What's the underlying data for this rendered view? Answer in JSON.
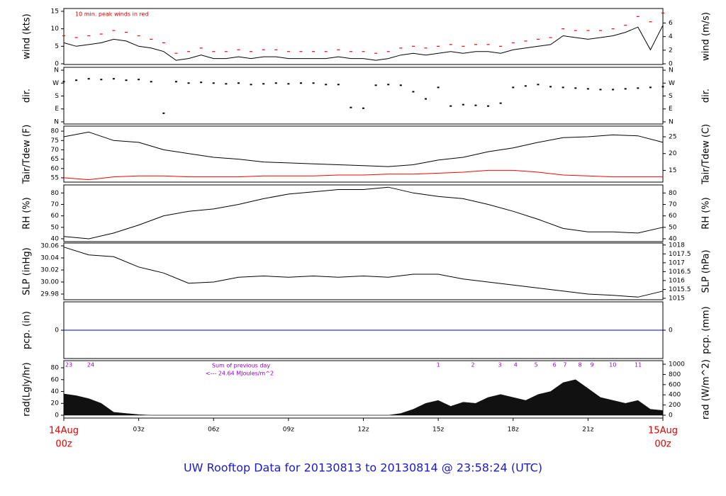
{
  "title": "UW Rooftop Data for 20130813  to  20130814 @ 23:58:24  (UTC)",
  "chart_data": [
    {
      "type": "line",
      "ylabel": "wind (kts)",
      "y2label": "wind (m/s)",
      "annotation": "10 min. peak winds in red",
      "xlim": [
        0,
        24
      ],
      "x": [
        0,
        0.5,
        1,
        1.5,
        2,
        2.5,
        3,
        3.5,
        4,
        4.5,
        5,
        5.5,
        6,
        6.5,
        7,
        7.5,
        8,
        8.5,
        9,
        9.5,
        10,
        10.5,
        11,
        11.5,
        12,
        12.5,
        13,
        13.5,
        14,
        14.5,
        15,
        15.5,
        16,
        16.5,
        17,
        17.5,
        18,
        18.5,
        19,
        19.5,
        20,
        20.5,
        21,
        21.5,
        22,
        22.5,
        23,
        23.5,
        24
      ],
      "ylim": [
        -0.2,
        15.8
      ],
      "yticks": [
        0,
        5,
        10,
        15
      ],
      "y2lim": [
        -0.1,
        8.13
      ],
      "y2ticks": [
        0,
        2,
        4,
        6
      ],
      "series": [
        {
          "color": "#000000",
          "mode": "line",
          "values": [
            6,
            5,
            5.5,
            6,
            7,
            6.5,
            5,
            4.5,
            3.5,
            1,
            1.5,
            2.5,
            1.5,
            1.5,
            2,
            1.5,
            2,
            2,
            1.5,
            1.5,
            1.5,
            1.5,
            2,
            1.5,
            1.5,
            1,
            1.5,
            2.5,
            3,
            2.5,
            3,
            3.5,
            3,
            3.5,
            3.5,
            3,
            4,
            4.5,
            5,
            5.5,
            8,
            7.5,
            7,
            7.5,
            8,
            9,
            10.5,
            4,
            11
          ]
        },
        {
          "color": "#ff0000",
          "mode": "markers",
          "values": [
            8,
            7.5,
            8,
            8.5,
            9.5,
            9,
            8,
            7,
            6,
            3,
            3.5,
            4.5,
            3.5,
            3.5,
            4,
            3.5,
            4,
            4,
            3.5,
            3.5,
            3.5,
            3.5,
            4,
            3.5,
            3.5,
            3,
            3.5,
            4.5,
            5,
            4.5,
            5,
            5.5,
            5,
            5.5,
            5.5,
            5,
            6,
            6.5,
            7,
            7.5,
            10,
            9.5,
            9.5,
            9.5,
            10,
            11,
            13.5,
            12,
            14.5
          ]
        }
      ]
    },
    {
      "type": "scatter",
      "ylabel": "dir.",
      "y2label": "dir.",
      "xlim": [
        0,
        24
      ],
      "x": [
        0,
        0.5,
        1,
        1.5,
        2,
        2.5,
        3,
        3.5,
        4,
        4.5,
        5,
        5.5,
        6,
        6.5,
        7,
        7.5,
        8,
        8.5,
        9,
        9.5,
        10,
        10.5,
        11,
        11.5,
        12,
        12.5,
        13,
        13.5,
        14,
        14.5,
        15,
        15.5,
        16,
        16.5,
        17,
        17.5,
        18,
        18.5,
        19,
        19.5,
        20,
        20.5,
        21,
        21.5,
        22,
        22.5,
        23,
        23.5,
        24
      ],
      "ylim": [
        -15,
        380
      ],
      "yticks": [
        {
          "value": 0,
          "label": "N"
        },
        {
          "value": 90,
          "label": "E"
        },
        {
          "value": 180,
          "label": "S"
        },
        {
          "value": 270,
          "label": "W"
        },
        {
          "value": 360,
          "label": "N"
        }
      ],
      "y2lim": [
        -15,
        380
      ],
      "y2ticks": [
        {
          "value": 0,
          "label": "N"
        },
        {
          "value": 90,
          "label": "E"
        },
        {
          "value": 180,
          "label": "S"
        },
        {
          "value": 270,
          "label": "W"
        },
        {
          "value": 360,
          "label": "N"
        }
      ],
      "series": [
        {
          "color": "#000000",
          "values": [
            280,
            290,
            300,
            295,
            300,
            290,
            295,
            280,
            60,
            280,
            270,
            275,
            270,
            265,
            270,
            260,
            265,
            270,
            265,
            270,
            270,
            260,
            260,
            100,
            95,
            255,
            260,
            255,
            210,
            160,
            240,
            110,
            120,
            115,
            110,
            130,
            240,
            250,
            260,
            245,
            240,
            235,
            230,
            225,
            225,
            230,
            235,
            240,
            245
          ]
        }
      ]
    },
    {
      "type": "line",
      "ylabel": "Tair/Tdew (F)",
      "y2label": "Tair/Tdew (C)",
      "xlim": [
        0,
        24
      ],
      "x": [
        0,
        1,
        2,
        3,
        4,
        5,
        6,
        7,
        8,
        9,
        10,
        11,
        12,
        13,
        14,
        15,
        16,
        17,
        18,
        19,
        20,
        21,
        22,
        23,
        24
      ],
      "ylim": [
        52.7,
        82.7
      ],
      "yticks": [
        55,
        60,
        65,
        70,
        75,
        80
      ],
      "y2lim": [
        11.5,
        28.17
      ],
      "y2ticks": [
        15,
        20,
        25
      ],
      "series": [
        {
          "color": "#000000",
          "mode": "line",
          "values": [
            77,
            79.5,
            75,
            74,
            70,
            68,
            66,
            65,
            63.5,
            63,
            62.5,
            62,
            61.5,
            61,
            62,
            64.5,
            66,
            69,
            71,
            74,
            76.5,
            77,
            78,
            77.5,
            74
          ]
        },
        {
          "color": "#ff0000",
          "mode": "line",
          "values": [
            55,
            54,
            55.5,
            56,
            56,
            55.5,
            55.5,
            55.5,
            56,
            56,
            56,
            56.5,
            56.5,
            57,
            57,
            57.5,
            58,
            59,
            59,
            58,
            56.5,
            56,
            55.5,
            55.5,
            55.5
          ]
        }
      ]
    },
    {
      "type": "line",
      "ylabel": "RH (%)",
      "y2label": "RH (%)",
      "xlim": [
        0,
        24
      ],
      "x": [
        0,
        1,
        2,
        3,
        4,
        5,
        6,
        7,
        8,
        9,
        10,
        11,
        12,
        13,
        14,
        15,
        16,
        17,
        18,
        19,
        20,
        21,
        22,
        23,
        24
      ],
      "ylim": [
        37.5,
        87
      ],
      "yticks": [
        40,
        50,
        60,
        70,
        80
      ],
      "y2lim": [
        37.5,
        87
      ],
      "y2ticks": [
        40,
        50,
        60,
        70,
        80
      ],
      "series": [
        {
          "color": "#000000",
          "mode": "line",
          "values": [
            42,
            40,
            45,
            52,
            60,
            64,
            66,
            70,
            75,
            79,
            81,
            83,
            83,
            85,
            80,
            77,
            75,
            70,
            64,
            57,
            49,
            46,
            46,
            45,
            50
          ]
        }
      ]
    },
    {
      "type": "line",
      "ylabel": "SLP (inHg)",
      "y2label": "SLP (hPa)",
      "xlim": [
        0,
        24
      ],
      "x": [
        0,
        1,
        2,
        3,
        4,
        5,
        6,
        7,
        8,
        9,
        10,
        11,
        12,
        13,
        14,
        15,
        16,
        17,
        18,
        19,
        20,
        21,
        22,
        23,
        24
      ],
      "ylim": [
        29.9706,
        30.0647
      ],
      "yticks": [
        29.98,
        {
          "value": 30,
          "label": "30.00"
        },
        30.02,
        30.04,
        30.06
      ],
      "y2lim": [
        1014.92,
        1018.11
      ],
      "y2ticks": [
        1015,
        1015.5,
        1016,
        1016.5,
        1017,
        1017.5,
        1018
      ],
      "series": [
        {
          "color": "#000000",
          "mode": "line",
          "values": [
            30.058,
            30.045,
            30.042,
            30.025,
            30.015,
            29.998,
            30.0,
            30.008,
            30.01,
            30.008,
            30.01,
            30.008,
            30.01,
            30.008,
            30.013,
            30.013,
            30.005,
            30.0,
            29.995,
            29.99,
            29.985,
            29.98,
            29.978,
            29.975,
            29.985
          ]
        }
      ]
    },
    {
      "type": "line",
      "ylabel": "pcp. (in)",
      "y2label": "pcp. (mm)",
      "xlim": [
        0,
        24
      ],
      "x": [
        0,
        24
      ],
      "ylim": [
        -1,
        1
      ],
      "yticks": [
        0
      ],
      "y2lim": [
        -1,
        1
      ],
      "y2ticks": [
        0
      ],
      "series": [
        {
          "color": "#0000cc",
          "mode": "line",
          "values": [
            0,
            0
          ]
        }
      ]
    },
    {
      "type": "area",
      "ylabel": "rad(Lgly/hr)",
      "y2label": "rad (W/m^2)",
      "annotations": [
        "Sum of previous day",
        "<--- 24.64 MJoules/m^2"
      ],
      "hour_markers": {
        "x": [
          0.2,
          1.08,
          15.0,
          16.39,
          17.47,
          18.1,
          18.92,
          19.66,
          20.08,
          20.68,
          21.16,
          21.99,
          23.01
        ],
        "labels": [
          "23",
          "24",
          "1",
          "2",
          "3",
          "4",
          "5",
          "6",
          "7",
          "8",
          "9",
          "10",
          "11"
        ]
      },
      "xlim": [
        0,
        24
      ],
      "x": [
        0,
        0.5,
        1,
        1.5,
        2,
        2.5,
        3,
        3.5,
        4,
        4.5,
        5,
        5.5,
        6,
        6.5,
        7,
        7.5,
        8,
        8.5,
        9,
        9.5,
        10,
        10.5,
        11,
        11.5,
        12,
        12.5,
        13,
        13.5,
        14,
        14.5,
        15,
        15.5,
        16,
        16.5,
        17,
        17.5,
        18,
        18.5,
        19,
        19.5,
        20,
        20.5,
        21,
        21.5,
        22,
        22.5,
        23,
        23.5,
        24
      ],
      "xticks": [
        {
          "value": 0,
          "label": "00z"
        },
        {
          "value": 3,
          "label": "03z"
        },
        {
          "value": 6,
          "label": "06z"
        },
        {
          "value": 9,
          "label": "09z"
        },
        {
          "value": 12,
          "label": "12z"
        },
        {
          "value": 15,
          "label": "15z"
        },
        {
          "value": 18,
          "label": "18z"
        },
        {
          "value": 21,
          "label": "21z"
        },
        {
          "value": 24,
          "label": "00z"
        }
      ],
      "date_labels": [
        {
          "value": 0,
          "label": "14Aug"
        },
        {
          "value": 24,
          "label": "15Aug"
        }
      ],
      "ylim": [
        -4.8,
        92
      ],
      "yticks": [
        0,
        20,
        40,
        60,
        80
      ],
      "y2lim": [
        -56,
        1070
      ],
      "y2ticks": [
        0,
        200,
        400,
        600,
        800,
        1000
      ],
      "series": [
        {
          "color": "#111111",
          "values": [
            36,
            33,
            28,
            20,
            5,
            3,
            1,
            0,
            0,
            0,
            0,
            0,
            0,
            0,
            0,
            0,
            0,
            0,
            0,
            0,
            0,
            0,
            0,
            0,
            0,
            0,
            0,
            3,
            10,
            20,
            25,
            15,
            22,
            20,
            30,
            35,
            30,
            25,
            35,
            40,
            55,
            60,
            45,
            30,
            25,
            20,
            25,
            10,
            8
          ]
        }
      ]
    }
  ]
}
